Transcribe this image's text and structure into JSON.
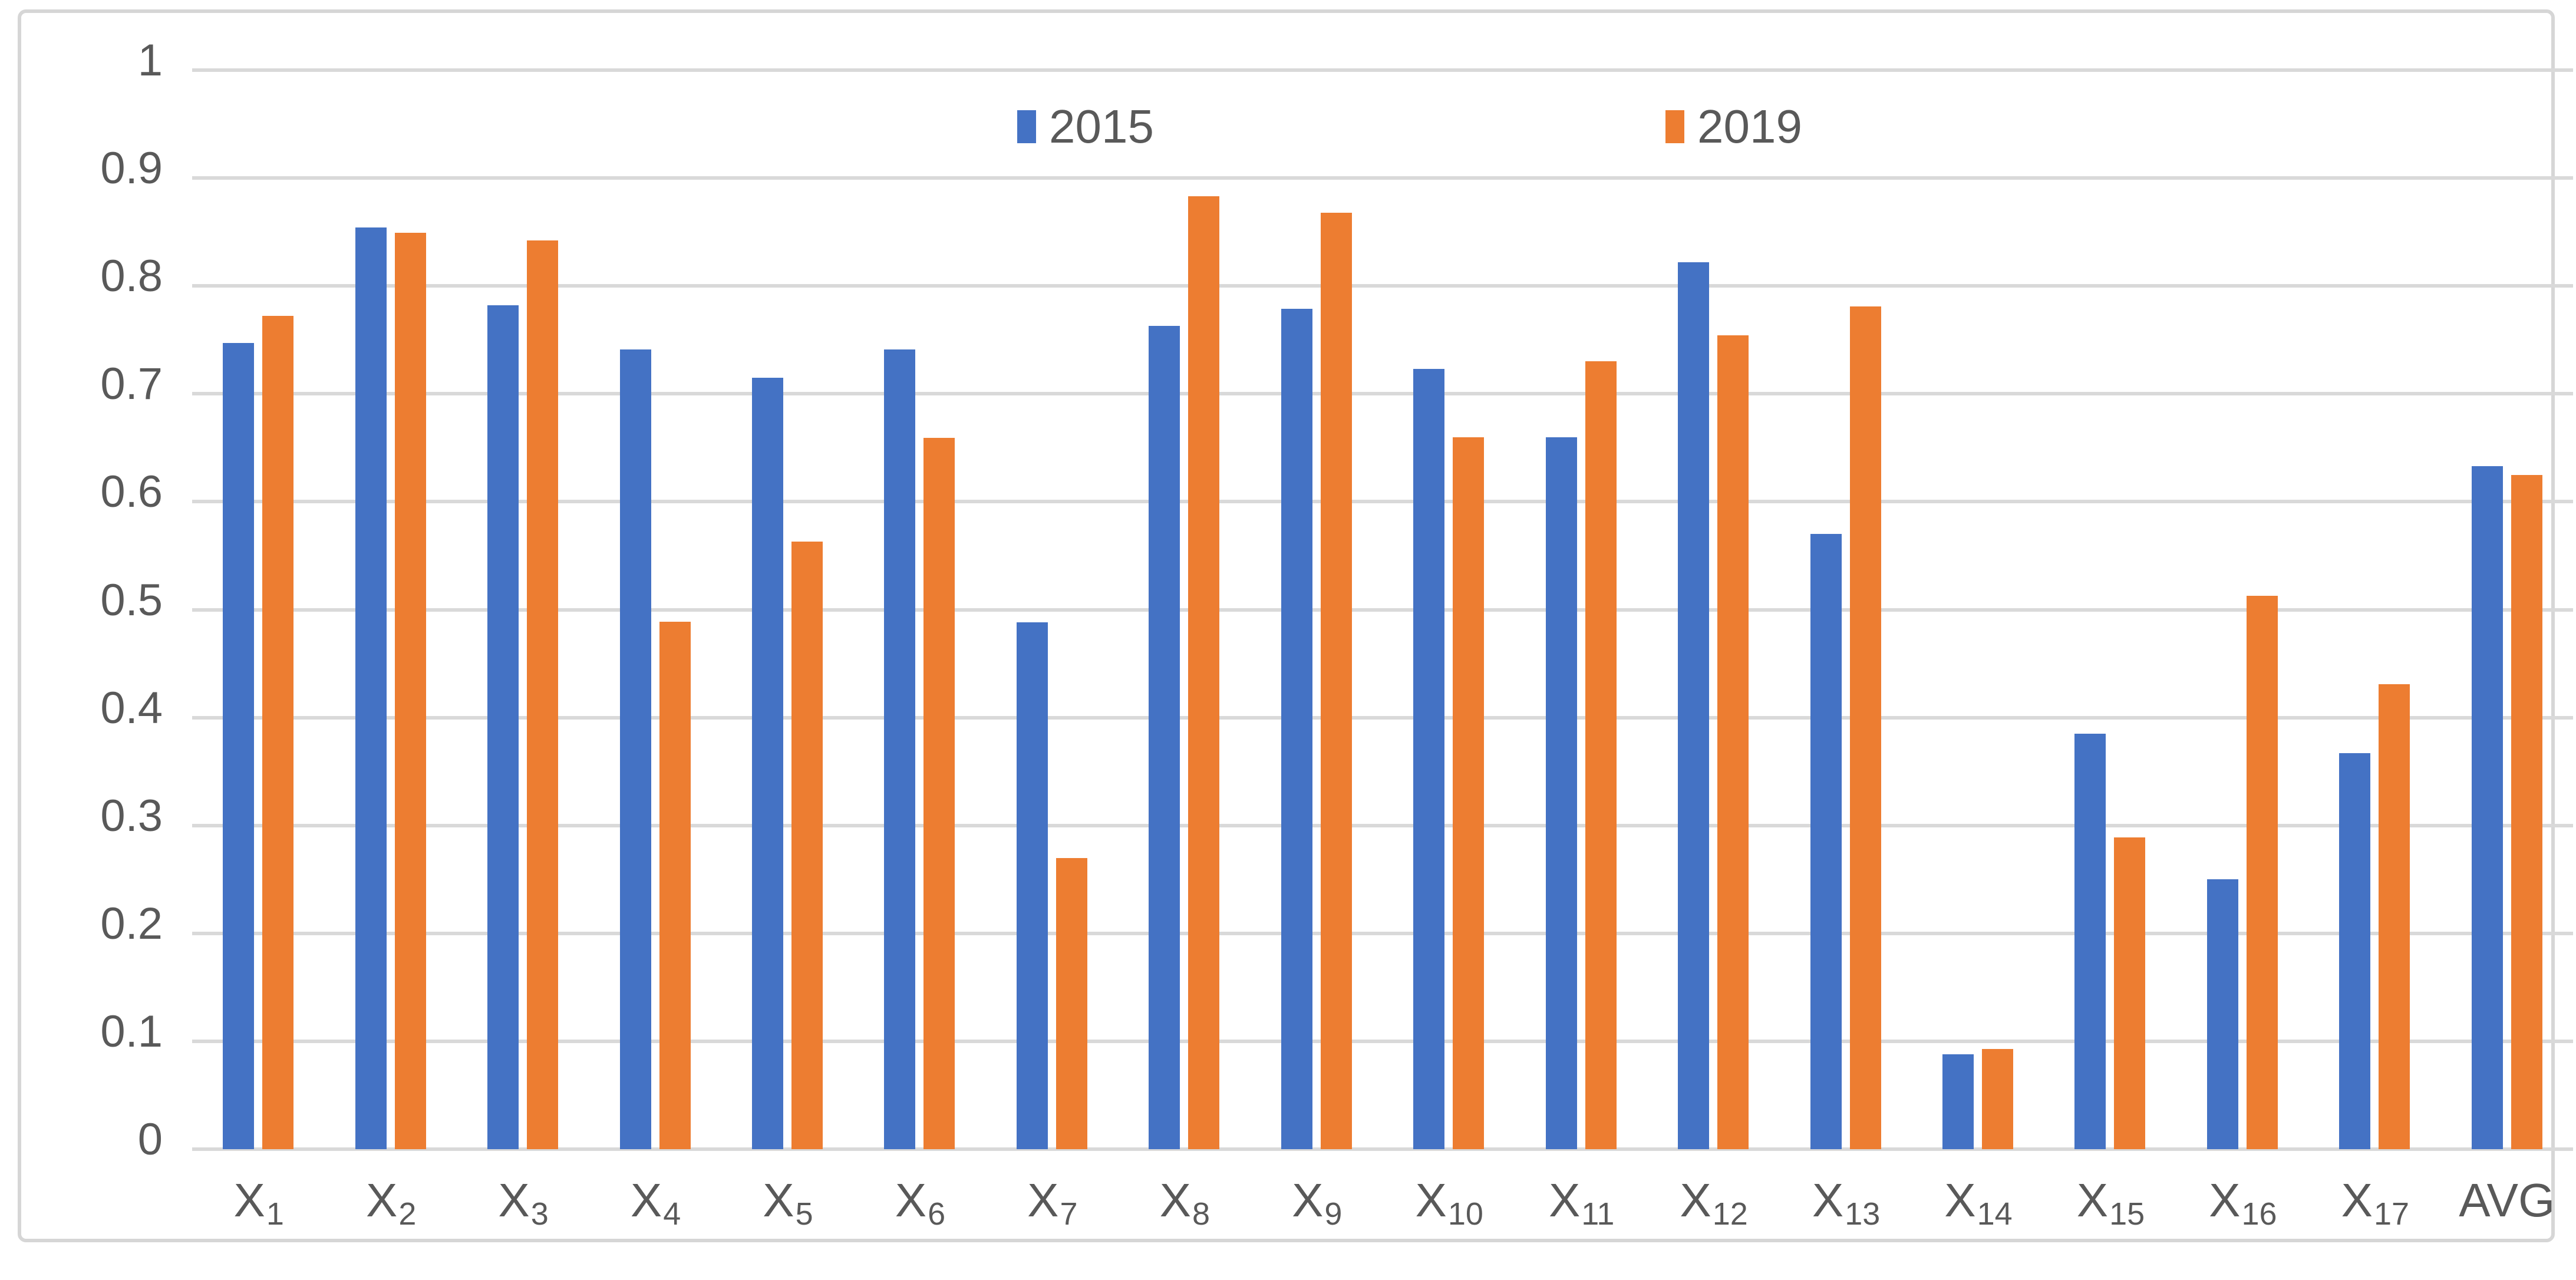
{
  "chart_data": {
    "type": "bar",
    "title": "",
    "xlabel": "",
    "ylabel": "",
    "ylim": [
      0,
      1
    ],
    "grid": true,
    "legend_position": "top-center",
    "categories": [
      {
        "base": "X",
        "sub": "1"
      },
      {
        "base": "X",
        "sub": "2"
      },
      {
        "base": "X",
        "sub": "3"
      },
      {
        "base": "X",
        "sub": "4"
      },
      {
        "base": "X",
        "sub": "5"
      },
      {
        "base": "X",
        "sub": "6"
      },
      {
        "base": "X",
        "sub": "7"
      },
      {
        "base": "X",
        "sub": "8"
      },
      {
        "base": "X",
        "sub": "9"
      },
      {
        "base": "X",
        "sub": "10"
      },
      {
        "base": "X",
        "sub": "11"
      },
      {
        "base": "X",
        "sub": "12"
      },
      {
        "base": "X",
        "sub": "13"
      },
      {
        "base": "X",
        "sub": "14"
      },
      {
        "base": "X",
        "sub": "15"
      },
      {
        "base": "X",
        "sub": "16"
      },
      {
        "base": "X",
        "sub": "17"
      },
      {
        "base": "AVG",
        "sub": ""
      }
    ],
    "series": [
      {
        "name": "2015",
        "color": "#4472C4",
        "values": [
          0.747,
          0.854,
          0.782,
          0.741,
          0.715,
          0.741,
          0.488,
          0.763,
          0.779,
          0.723,
          0.66,
          0.822,
          0.57,
          0.088,
          0.385,
          0.25,
          0.367,
          0.633
        ]
      },
      {
        "name": "2019",
        "color": "#ED7D31",
        "values": [
          0.772,
          0.849,
          0.842,
          0.489,
          0.563,
          0.659,
          0.27,
          0.883,
          0.868,
          0.66,
          0.73,
          0.754,
          0.781,
          0.093,
          0.289,
          0.513,
          0.431,
          0.625
        ]
      }
    ],
    "yticks": [
      {
        "value": 0.0,
        "label": "0"
      },
      {
        "value": 0.1,
        "label": "0.1"
      },
      {
        "value": 0.2,
        "label": "0.2"
      },
      {
        "value": 0.3,
        "label": "0.3"
      },
      {
        "value": 0.4,
        "label": "0.4"
      },
      {
        "value": 0.5,
        "label": "0.5"
      },
      {
        "value": 0.6,
        "label": "0.6"
      },
      {
        "value": 0.7,
        "label": "0.7"
      },
      {
        "value": 0.8,
        "label": "0.8"
      },
      {
        "value": 0.9,
        "label": "0.9"
      },
      {
        "value": 1.0,
        "label": "1"
      }
    ],
    "colors": {
      "gridline": "#d9d9d9",
      "axis_text": "#595959",
      "frame_border": "#d6d6d6",
      "background": "#ffffff"
    }
  }
}
